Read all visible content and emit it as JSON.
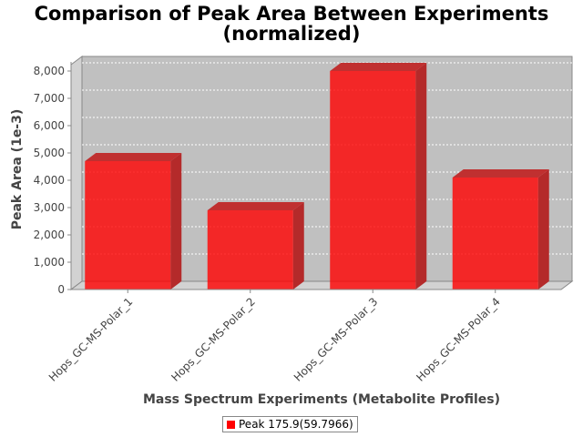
{
  "title_line1": "Comparison of Peak Area Between Experiments",
  "title_line2": "(normalized)",
  "chart_data": {
    "type": "bar",
    "title": "Comparison of Peak Area Between Experiments (normalized)",
    "xlabel": "Mass Spectrum Experiments (Metabolite Profiles)",
    "ylabel": "Peak Area (1e-3)",
    "categories": [
      "Hops_GC-MS-Polar_1",
      "Hops_GC-MS-Polar_2",
      "Hops_GC-MS-Polar_3",
      "Hops_GC-MS-Polar_4"
    ],
    "series": [
      {
        "name": "Peak 175.9(59.7966)",
        "values": [
          4700,
          2900,
          8000,
          4100
        ]
      }
    ],
    "ylim": [
      0,
      8000
    ],
    "yticks": [
      0,
      1000,
      2000,
      3000,
      4000,
      5000,
      6000,
      7000,
      8000
    ],
    "ytick_labels": [
      "0",
      "1,000",
      "2,000",
      "3,000",
      "4,000",
      "5,000",
      "6,000",
      "7,000",
      "8,000"
    ],
    "grid": true,
    "legend": "bottom",
    "colors": {
      "bar": "#ff0000",
      "plot_background": "#c0c0c0"
    }
  }
}
